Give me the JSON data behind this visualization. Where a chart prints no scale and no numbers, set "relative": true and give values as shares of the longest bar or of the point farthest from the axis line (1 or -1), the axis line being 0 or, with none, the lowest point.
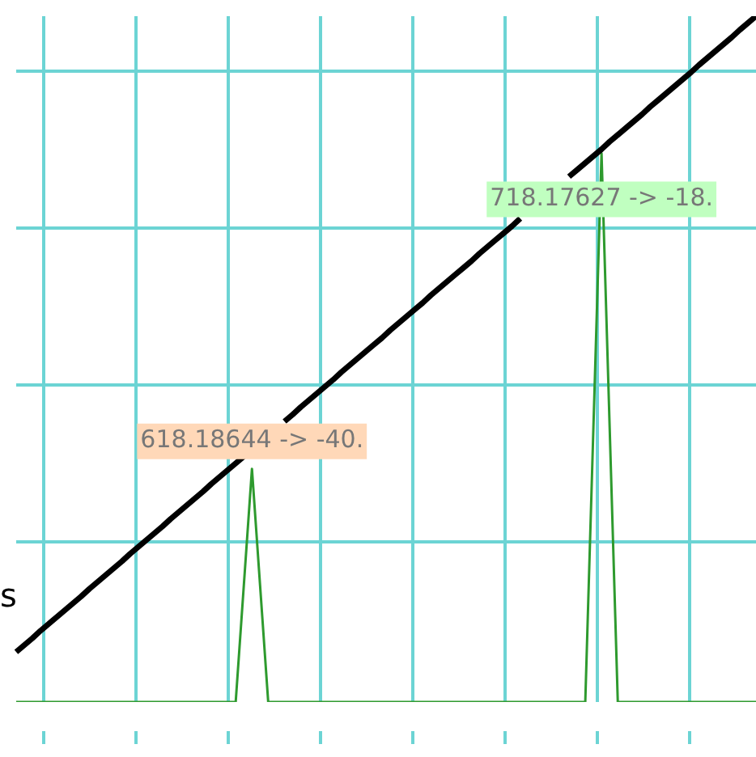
{
  "chart_data": {
    "type": "line",
    "relative": true,
    "grid": true,
    "legend": false,
    "marker": "none",
    "line_style": "solid",
    "categories": [
      null,
      null,
      null,
      null,
      null,
      null,
      null,
      null,
      null,
      null,
      null,
      null,
      null,
      null,
      null,
      null,
      null,
      null,
      null,
      null,
      null,
      null,
      null,
      null,
      null,
      null,
      null,
      null,
      null,
      null,
      null,
      null,
      null,
      null,
      null,
      null,
      null,
      null,
      null,
      null,
      null,
      null,
      null,
      null,
      null,
      null,
      null,
      null,
      null,
      null,
      null,
      null,
      null,
      null,
      null,
      null,
      null,
      null,
      null,
      null,
      null,
      null,
      null,
      null,
      null,
      null,
      null,
      null,
      null,
      null,
      null,
      null,
      null,
      null,
      null,
      null,
      null,
      null,
      null,
      null,
      null,
      null,
      null,
      null,
      null,
      null,
      null,
      null,
      null,
      null,
      null,
      null
    ],
    "series": [
      {
        "color": "#000000",
        "values": [
          0.073,
          0.083,
          0.093,
          0.104,
          0.114,
          0.124,
          0.134,
          0.144,
          0.154,
          0.165,
          0.175,
          0.185,
          0.195,
          0.205,
          0.216,
          0.226,
          0.236,
          0.246,
          0.256,
          0.267,
          0.277,
          0.287,
          0.297,
          0.307,
          0.318,
          0.328,
          0.338,
          0.348,
          0.358,
          null,
          null,
          null,
          null,
          0.409,
          0.419,
          0.43,
          0.44,
          0.45,
          0.46,
          0.47,
          0.481,
          0.491,
          0.501,
          0.511,
          0.521,
          0.531,
          0.542,
          0.552,
          0.562,
          0.572,
          0.582,
          0.593,
          0.603,
          0.613,
          0.623,
          0.633,
          0.643,
          0.654,
          0.664,
          0.674,
          0.684,
          0.694,
          0.705,
          null,
          null,
          null,
          null,
          null,
          0.766,
          0.776,
          0.786,
          0.796,
          0.806,
          0.817,
          0.827,
          0.837,
          0.847,
          0.857,
          0.868,
          0.878,
          0.888,
          0.898,
          0.908,
          0.918,
          0.929,
          0.939,
          0.949,
          0.959,
          0.969,
          0.98,
          0.99,
          1
        ]
      },
      {
        "color": "#2e9a2e",
        "values": [
          0,
          0,
          0,
          0,
          0,
          0,
          0,
          0,
          0,
          0,
          0,
          0,
          0,
          0,
          0,
          0,
          0,
          0,
          0,
          0,
          0,
          0,
          0,
          0,
          0,
          0,
          0,
          0,
          0.17,
          0.34,
          0.17,
          0,
          0,
          0,
          0,
          0,
          0,
          0,
          0,
          0,
          0,
          0,
          0,
          0,
          0,
          0,
          0,
          0,
          0,
          0,
          0,
          0,
          0,
          0,
          0,
          0,
          0,
          0,
          0,
          0,
          0,
          0,
          0,
          0,
          0,
          0,
          0,
          0,
          0,
          0,
          0,
          0.4,
          0.8,
          0.4,
          0,
          0,
          0,
          0,
          0,
          0,
          0,
          0,
          0,
          0,
          0,
          0,
          0,
          0,
          0,
          0,
          0,
          0
        ]
      }
    ],
    "annotations": [
      "618.18644 -> -40.",
      "718.17627 -> -18.",
      "s"
    ]
  }
}
